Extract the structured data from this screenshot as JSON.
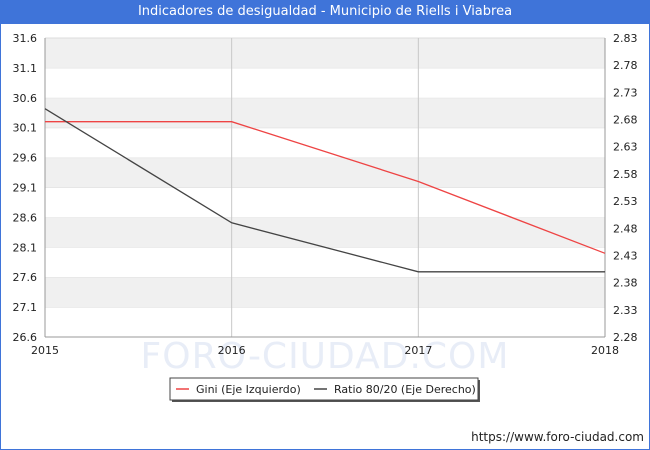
{
  "header": {
    "title": "Indicadores de desigualdad - Municipio de Riells i Viabrea"
  },
  "watermark": "FORO-CIUDAD.COM",
  "source_url": "https://www.foro-ciudad.com",
  "colors": {
    "gini": "#ee4444",
    "ratio": "#444444",
    "band": "#f0f0f0",
    "header": "#3f74d9"
  },
  "chart_data": {
    "type": "line",
    "x": [
      2015,
      2016,
      2017,
      2018
    ],
    "x_tick_labels": [
      "2015",
      "2016",
      "2017",
      "2018"
    ],
    "series": [
      {
        "name": "Gini (Eje Izquierdo)",
        "axis": "left",
        "values": [
          30.2,
          30.2,
          29.2,
          28.0
        ]
      },
      {
        "name": "Ratio 80/20 (Eje Derecho)",
        "axis": "right",
        "values": [
          2.7,
          2.49,
          2.4,
          2.4
        ]
      }
    ],
    "left_axis": {
      "ylim": [
        26.6,
        31.6
      ],
      "ticks": [
        "26.6",
        "27.1",
        "27.6",
        "28.1",
        "28.6",
        "29.1",
        "29.6",
        "30.1",
        "30.6",
        "31.1",
        "31.6"
      ]
    },
    "right_axis": {
      "ylim": [
        2.28,
        2.83
      ],
      "ticks": [
        "2.28",
        "2.33",
        "2.38",
        "2.43",
        "2.48",
        "2.53",
        "2.58",
        "2.63",
        "2.68",
        "2.73",
        "2.78",
        "2.83"
      ]
    },
    "grid": true,
    "legend_position": "bottom-center"
  }
}
